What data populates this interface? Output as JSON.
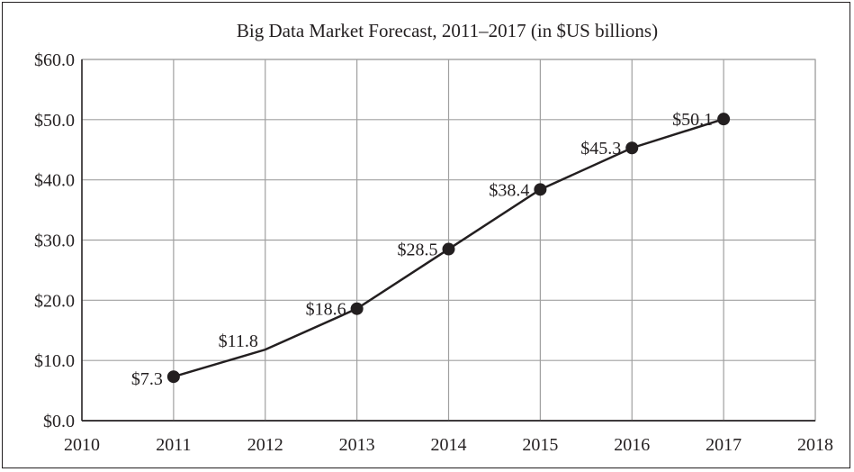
{
  "chart_data": {
    "type": "line",
    "title": "Big Data Market Forecast, 2011–2017 (in $US billions)",
    "xlabel": "",
    "ylabel": "",
    "xlim": [
      2010,
      2018
    ],
    "ylim": [
      0,
      60
    ],
    "x_ticks": [
      "2010",
      "2011",
      "2012",
      "2013",
      "2014",
      "2015",
      "2016",
      "2017",
      "2018"
    ],
    "y_ticks": [
      "$0.0",
      "$10.0",
      "$20.0",
      "$30.0",
      "$40.0",
      "$50.0",
      "$60.0"
    ],
    "grid": true,
    "legend": "none",
    "series": [
      {
        "x": [
          2011,
          2012,
          2013,
          2014,
          2015,
          2016,
          2017
        ],
        "values": [
          7.3,
          11.8,
          18.6,
          28.5,
          38.4,
          45.3,
          50.1
        ],
        "labels": [
          "$7.3",
          "$11.8",
          "$18.6",
          "$28.5",
          "$38.4",
          "$45.3",
          "$50.1"
        ],
        "markers": [
          true,
          false,
          true,
          true,
          true,
          true,
          true
        ],
        "color": "#231f20"
      }
    ],
    "colors": {
      "line": "#231f20",
      "grid": "#a0a0a0",
      "axis": "#231f20"
    }
  }
}
